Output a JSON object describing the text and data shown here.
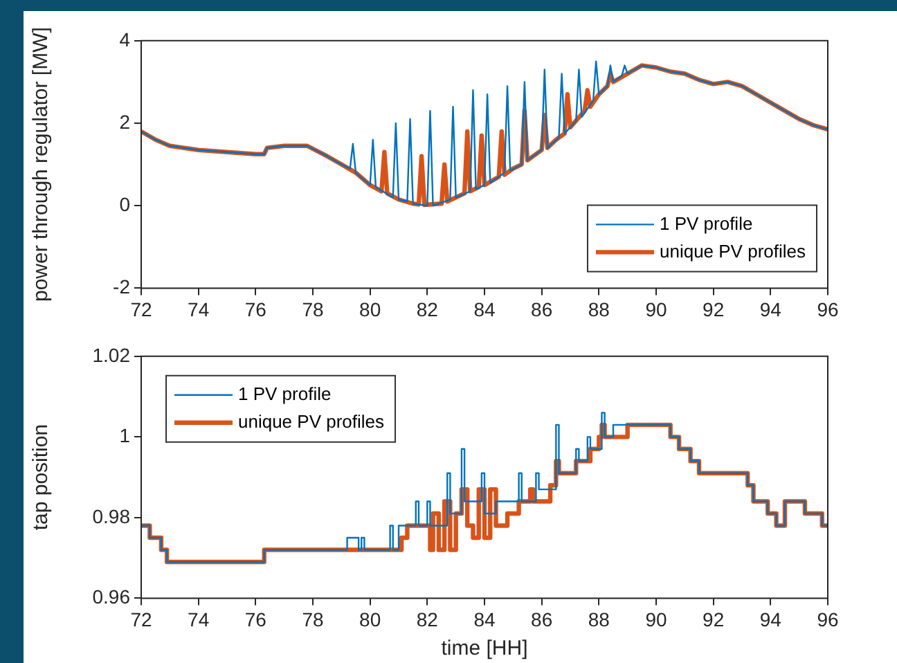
{
  "chart_data": [
    {
      "type": "line",
      "ylabel": "power through regulator [MW]",
      "xlim": [
        72,
        96
      ],
      "xticks": [
        72,
        74,
        76,
        78,
        80,
        82,
        84,
        86,
        88,
        90,
        92,
        94,
        96
      ],
      "ylim": [
        -2,
        4
      ],
      "yticks": [
        -2,
        0,
        2,
        4
      ],
      "grid": false,
      "legend": "bottom right",
      "series": [
        {
          "name": "1 PV profile",
          "color": "#0072bd",
          "x": [
            72,
            72.5,
            73,
            74,
            75,
            76,
            76.3,
            76.4,
            77,
            77.8,
            78.5,
            79,
            79.3,
            79.4,
            79.5,
            80,
            80.1,
            80.2,
            80.8,
            80.9,
            81,
            81.3,
            81.4,
            81.5,
            82,
            82.1,
            82.2,
            82.8,
            82.9,
            83,
            83.5,
            83.6,
            83.7,
            84,
            84.1,
            84.2,
            84.7,
            84.8,
            84.9,
            85.3,
            85.4,
            85.5,
            86,
            86.1,
            86.2,
            86.6,
            86.7,
            86.8,
            87.2,
            87.3,
            87.4,
            87.8,
            87.9,
            88,
            88.3,
            88.4,
            88.5,
            88.8,
            88.9,
            89,
            89.5,
            90,
            90.5,
            91,
            91.5,
            92,
            92.5,
            93,
            93.5,
            94,
            94.5,
            95,
            95.5,
            96
          ],
          "values": [
            1.8,
            1.6,
            1.45,
            1.35,
            1.3,
            1.25,
            1.25,
            1.4,
            1.45,
            1.45,
            1.2,
            1.0,
            0.9,
            1.5,
            0.8,
            0.5,
            1.6,
            0.45,
            0.2,
            2.0,
            0.15,
            0.1,
            2.1,
            0.05,
            0.0,
            2.3,
            0.0,
            0.15,
            2.4,
            0.2,
            0.35,
            2.8,
            0.4,
            0.5,
            2.7,
            0.55,
            0.8,
            2.9,
            0.85,
            1.0,
            3.0,
            1.1,
            1.35,
            3.3,
            1.4,
            1.65,
            3.2,
            1.75,
            2.05,
            3.3,
            2.15,
            2.55,
            3.5,
            2.7,
            2.9,
            3.4,
            3.0,
            3.15,
            3.4,
            3.2,
            3.4,
            3.35,
            3.25,
            3.2,
            3.05,
            2.95,
            3.0,
            2.9,
            2.7,
            2.5,
            2.3,
            2.1,
            1.95,
            1.85
          ]
        },
        {
          "name": "unique PV profiles",
          "color": "#d95319",
          "x": [
            72,
            72.5,
            73,
            74,
            75,
            76,
            76.3,
            76.4,
            77,
            77.8,
            78.5,
            79,
            79.5,
            80,
            80.4,
            80.5,
            80.6,
            81,
            81.5,
            81.7,
            81.8,
            81.9,
            82.5,
            82.6,
            82.7,
            83,
            83.3,
            83.4,
            83.5,
            83.8,
            83.9,
            84,
            84.5,
            84.6,
            84.7,
            85,
            85.3,
            85.4,
            85.5,
            86,
            86.1,
            86.2,
            86.5,
            86.8,
            86.9,
            87,
            87.5,
            87.6,
            87.7,
            88,
            88.3,
            88.4,
            88.5,
            89,
            89.5,
            90,
            90.5,
            91,
            91.5,
            92,
            92.5,
            93,
            93.5,
            94,
            94.5,
            95,
            95.5,
            96
          ],
          "values": [
            1.8,
            1.6,
            1.45,
            1.35,
            1.3,
            1.25,
            1.25,
            1.4,
            1.45,
            1.45,
            1.2,
            1.0,
            0.8,
            0.5,
            0.35,
            1.3,
            0.3,
            0.15,
            0.05,
            0.03,
            1.2,
            0.02,
            0.05,
            1.0,
            0.1,
            0.2,
            0.3,
            1.8,
            0.35,
            0.45,
            1.7,
            0.5,
            0.7,
            1.8,
            0.75,
            0.9,
            1.0,
            2.3,
            1.1,
            1.35,
            2.2,
            1.4,
            1.6,
            1.75,
            2.7,
            1.9,
            2.3,
            2.8,
            2.4,
            2.7,
            2.9,
            3.2,
            3.0,
            3.2,
            3.4,
            3.35,
            3.25,
            3.2,
            3.05,
            2.95,
            3.0,
            2.9,
            2.7,
            2.5,
            2.3,
            2.1,
            1.95,
            1.85
          ]
        }
      ]
    },
    {
      "type": "step",
      "xlabel": "time [HH]",
      "ylabel": "tap position",
      "xlim": [
        72,
        96
      ],
      "xticks": [
        72,
        74,
        76,
        78,
        80,
        82,
        84,
        86,
        88,
        90,
        92,
        94,
        96
      ],
      "ylim": [
        0.96,
        1.02
      ],
      "yticks": [
        0.96,
        0.98,
        1,
        1.02
      ],
      "grid": false,
      "legend": "top left",
      "series": [
        {
          "name": "1 PV profile",
          "color": "#0072bd",
          "x": [
            72,
            72.3,
            72.7,
            72.9,
            76.3,
            79.2,
            79.6,
            79.7,
            79.8,
            80.7,
            80.8,
            81.0,
            81.6,
            81.7,
            82.0,
            82.1,
            82.7,
            82.8,
            83.2,
            83.3,
            83.9,
            84.0,
            84.4,
            85.2,
            85.3,
            85.8,
            85.9,
            86.5,
            86.6,
            87.2,
            87.3,
            87.6,
            87.7,
            88.1,
            88.2,
            88.5,
            90.5,
            90.8,
            91.2,
            91.5,
            93.2,
            93.4,
            93.9,
            94.2,
            94.5,
            95.2,
            95.8,
            96
          ],
          "values": [
            0.978,
            0.975,
            0.972,
            0.969,
            0.972,
            0.975,
            0.972,
            0.975,
            0.972,
            0.978,
            0.972,
            0.978,
            0.984,
            0.978,
            0.984,
            0.978,
            0.991,
            0.981,
            0.997,
            0.984,
            0.991,
            0.981,
            0.984,
            0.991,
            0.984,
            0.991,
            0.987,
            1.003,
            0.991,
            0.997,
            0.994,
            1.0,
            0.997,
            1.006,
            1.0,
            1.003,
            1.0,
            0.997,
            0.994,
            0.991,
            0.988,
            0.984,
            0.981,
            0.978,
            0.984,
            0.981,
            0.978,
            0.978
          ]
        },
        {
          "name": "unique PV profiles",
          "color": "#d95319",
          "x": [
            72,
            72.3,
            72.7,
            72.9,
            76.3,
            81.1,
            81.3,
            82.1,
            82.2,
            82.4,
            82.6,
            82.8,
            83.0,
            83.2,
            83.4,
            83.6,
            83.8,
            84.0,
            84.2,
            84.4,
            84.8,
            85.2,
            85.6,
            85.7,
            86.3,
            86.5,
            86.6,
            87.2,
            87.7,
            88.0,
            88.1,
            88.2,
            89.0,
            90.5,
            90.8,
            91.2,
            91.5,
            93.2,
            93.4,
            93.9,
            94.2,
            94.5,
            95.2,
            95.8,
            96
          ],
          "values": [
            0.978,
            0.975,
            0.972,
            0.969,
            0.972,
            0.975,
            0.978,
            0.972,
            0.981,
            0.972,
            0.984,
            0.972,
            0.981,
            0.987,
            0.978,
            0.975,
            0.987,
            0.975,
            0.987,
            0.978,
            0.981,
            0.984,
            0.987,
            0.984,
            0.988,
            0.994,
            0.991,
            0.994,
            0.997,
            1.0,
            1.003,
            1.0,
            1.003,
            1.0,
            0.997,
            0.994,
            0.991,
            0.988,
            0.984,
            0.981,
            0.978,
            0.984,
            0.981,
            0.978,
            0.978
          ]
        }
      ]
    }
  ]
}
